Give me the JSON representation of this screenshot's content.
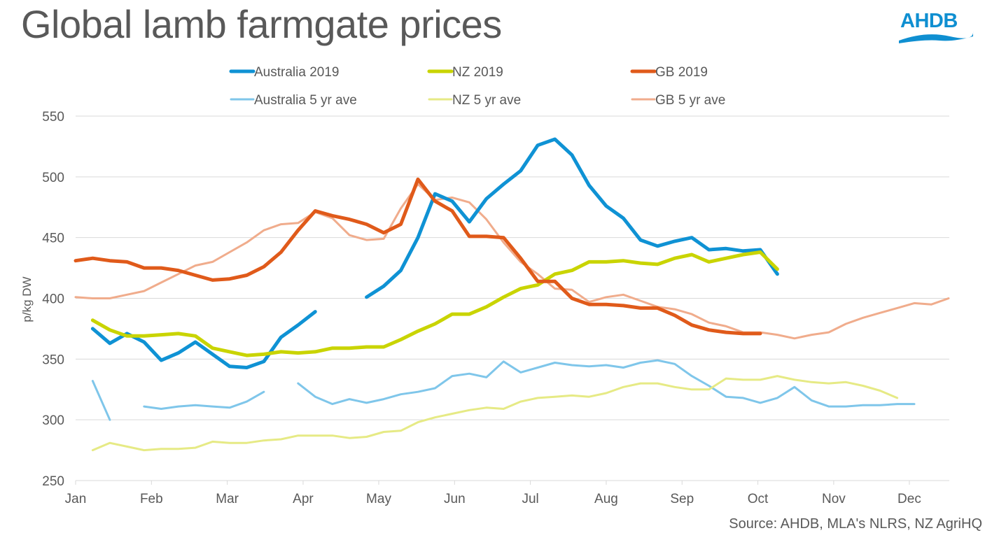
{
  "title": "Global lamb farmgate prices",
  "logo": {
    "text": "AHDB",
    "color": "#0f8fd1"
  },
  "source": "Source: AHDB, MLA's NLRS, NZ AgriHQ",
  "chart_data": {
    "type": "line",
    "title": "Global lamb farmgate prices",
    "xlabel": "",
    "ylabel": "p/kg DW",
    "ylim": [
      250,
      550
    ],
    "yticks": [
      250,
      300,
      350,
      400,
      450,
      500,
      550
    ],
    "x_unit": "week of year (0 = start of Jan)",
    "xlim": [
      0,
      51
    ],
    "xticks": [
      {
        "label": "Jan",
        "week": 0
      },
      {
        "label": "Feb",
        "week": 4.43
      },
      {
        "label": "Mar",
        "week": 8.86
      },
      {
        "label": "Apr",
        "week": 13.29
      },
      {
        "label": "May",
        "week": 17.71
      },
      {
        "label": "Jun",
        "week": 22.14
      },
      {
        "label": "Jul",
        "week": 26.57
      },
      {
        "label": "Aug",
        "week": 31.0
      },
      {
        "label": "Sep",
        "week": 35.43
      },
      {
        "label": "Oct",
        "week": 39.86
      },
      {
        "label": "Nov",
        "week": 44.29
      },
      {
        "label": "Dec",
        "week": 48.71
      }
    ],
    "grid": "horizontal",
    "legend_position": "top",
    "series": [
      {
        "name": "Australia 2019",
        "color": "#0f92d4",
        "width": "thick",
        "segments": [
          [
            [
              1,
              375
            ],
            [
              2,
              363
            ],
            [
              3,
              371
            ],
            [
              4,
              364
            ],
            [
              5,
              349
            ],
            [
              6,
              355
            ],
            [
              7,
              364
            ],
            [
              8,
              354
            ],
            [
              9,
              344
            ],
            [
              10,
              343
            ],
            [
              11,
              348
            ],
            [
              12,
              368
            ],
            [
              13,
              378
            ],
            [
              14,
              389
            ]
          ],
          [
            [
              17,
              401
            ],
            [
              18,
              410
            ],
            [
              19,
              423
            ],
            [
              20,
              450
            ],
            [
              21,
              486
            ],
            [
              22,
              480
            ],
            [
              23,
              463
            ],
            [
              24,
              482
            ],
            [
              25,
              494
            ],
            [
              26,
              505
            ],
            [
              27,
              526
            ],
            [
              28,
              531
            ],
            [
              29,
              518
            ],
            [
              30,
              493
            ],
            [
              31,
              476
            ],
            [
              32,
              466
            ],
            [
              33,
              448
            ],
            [
              34,
              443
            ],
            [
              35,
              447
            ],
            [
              36,
              450
            ],
            [
              37,
              440
            ],
            [
              38,
              441
            ],
            [
              39,
              439
            ],
            [
              40,
              440
            ],
            [
              41,
              420
            ]
          ]
        ]
      },
      {
        "name": "NZ 2019",
        "color": "#c9d400",
        "width": "thick",
        "segments": [
          [
            [
              1,
              382
            ],
            [
              2,
              374
            ],
            [
              3,
              369
            ],
            [
              4,
              369
            ],
            [
              5,
              370
            ],
            [
              6,
              371
            ],
            [
              7,
              369
            ],
            [
              8,
              359
            ],
            [
              9,
              356
            ],
            [
              10,
              353
            ],
            [
              11,
              354
            ],
            [
              12,
              356
            ],
            [
              13,
              355
            ],
            [
              14,
              356
            ],
            [
              15,
              359
            ],
            [
              16,
              359
            ],
            [
              17,
              360
            ],
            [
              18,
              360
            ],
            [
              19,
              366
            ],
            [
              20,
              373
            ],
            [
              21,
              379
            ],
            [
              22,
              387
            ],
            [
              23,
              387
            ],
            [
              24,
              393
            ],
            [
              25,
              401
            ],
            [
              26,
              408
            ],
            [
              27,
              411
            ],
            [
              28,
              420
            ],
            [
              29,
              423
            ],
            [
              30,
              430
            ],
            [
              31,
              430
            ],
            [
              32,
              431
            ],
            [
              33,
              429
            ],
            [
              34,
              428
            ],
            [
              35,
              433
            ],
            [
              36,
              436
            ],
            [
              37,
              430
            ],
            [
              38,
              433
            ],
            [
              39,
              436
            ],
            [
              40,
              438
            ],
            [
              41,
              424
            ]
          ]
        ]
      },
      {
        "name": "GB 2019",
        "color": "#e05a1a",
        "width": "thick",
        "segments": [
          [
            [
              0,
              431
            ],
            [
              1,
              433
            ],
            [
              2,
              431
            ],
            [
              3,
              430
            ],
            [
              4,
              425
            ],
            [
              5,
              425
            ],
            [
              6,
              423
            ],
            [
              7,
              419
            ],
            [
              8,
              415
            ],
            [
              9,
              416
            ],
            [
              10,
              419
            ],
            [
              11,
              426
            ],
            [
              12,
              438
            ],
            [
              13,
              456
            ],
            [
              14,
              472
            ],
            [
              15,
              468
            ],
            [
              16,
              465
            ],
            [
              17,
              461
            ],
            [
              18,
              454
            ],
            [
              19,
              461
            ],
            [
              20,
              498
            ],
            [
              21,
              480
            ],
            [
              22,
              472
            ],
            [
              23,
              451
            ],
            [
              24,
              451
            ],
            [
              25,
              450
            ],
            [
              26,
              433
            ],
            [
              27,
              414
            ],
            [
              28,
              414
            ],
            [
              29,
              400
            ],
            [
              30,
              395
            ],
            [
              31,
              395
            ],
            [
              32,
              394
            ],
            [
              33,
              392
            ],
            [
              34,
              392
            ],
            [
              35,
              386
            ],
            [
              36,
              378
            ],
            [
              37,
              374
            ],
            [
              38,
              372
            ],
            [
              39,
              371
            ],
            [
              40,
              371
            ]
          ]
        ]
      },
      {
        "name": "Australia 5 yr ave",
        "color": "#7fc6ea",
        "width": "thin",
        "segments": [
          [
            [
              1,
              332
            ],
            [
              2,
              300
            ]
          ],
          [
            [
              4,
              311
            ],
            [
              5,
              309
            ],
            [
              6,
              311
            ],
            [
              7,
              312
            ],
            [
              8,
              311
            ],
            [
              9,
              310
            ],
            [
              10,
              315
            ],
            [
              11,
              323
            ]
          ],
          [
            [
              13,
              330
            ],
            [
              14,
              319
            ],
            [
              15,
              313
            ],
            [
              16,
              317
            ],
            [
              17,
              314
            ],
            [
              18,
              317
            ],
            [
              19,
              321
            ],
            [
              20,
              323
            ],
            [
              21,
              326
            ],
            [
              22,
              336
            ],
            [
              23,
              338
            ],
            [
              24,
              335
            ],
            [
              25,
              348
            ],
            [
              26,
              339
            ],
            [
              27,
              343
            ],
            [
              28,
              347
            ],
            [
              29,
              345
            ],
            [
              30,
              344
            ],
            [
              31,
              345
            ],
            [
              32,
              343
            ],
            [
              33,
              347
            ],
            [
              34,
              349
            ],
            [
              35,
              346
            ],
            [
              36,
              336
            ],
            [
              37,
              328
            ],
            [
              38,
              319
            ],
            [
              39,
              318
            ],
            [
              40,
              314
            ],
            [
              41,
              318
            ],
            [
              42,
              327
            ],
            [
              43,
              316
            ],
            [
              44,
              311
            ],
            [
              45,
              311
            ],
            [
              46,
              312
            ],
            [
              47,
              312
            ],
            [
              48,
              313
            ],
            [
              49,
              313
            ]
          ]
        ]
      },
      {
        "name": "NZ 5 yr ave",
        "color": "#e6ea85",
        "width": "thin",
        "segments": [
          [
            [
              1,
              275
            ],
            [
              2,
              281
            ],
            [
              3,
              278
            ],
            [
              4,
              275
            ],
            [
              5,
              276
            ],
            [
              6,
              276
            ],
            [
              7,
              277
            ],
            [
              8,
              282
            ],
            [
              9,
              281
            ],
            [
              10,
              281
            ],
            [
              11,
              283
            ],
            [
              12,
              284
            ],
            [
              13,
              287
            ],
            [
              14,
              287
            ],
            [
              15,
              287
            ],
            [
              16,
              285
            ],
            [
              17,
              286
            ],
            [
              18,
              290
            ],
            [
              19,
              291
            ],
            [
              20,
              298
            ],
            [
              21,
              302
            ],
            [
              22,
              305
            ],
            [
              23,
              308
            ],
            [
              24,
              310
            ],
            [
              25,
              309
            ],
            [
              26,
              315
            ],
            [
              27,
              318
            ],
            [
              28,
              319
            ],
            [
              29,
              320
            ],
            [
              30,
              319
            ],
            [
              31,
              322
            ],
            [
              32,
              327
            ],
            [
              33,
              330
            ],
            [
              34,
              330
            ],
            [
              35,
              327
            ],
            [
              36,
              325
            ],
            [
              37,
              325
            ],
            [
              38,
              334
            ],
            [
              39,
              333
            ],
            [
              40,
              333
            ],
            [
              41,
              336
            ],
            [
              42,
              333
            ],
            [
              43,
              331
            ],
            [
              44,
              330
            ],
            [
              45,
              331
            ],
            [
              46,
              328
            ],
            [
              47,
              324
            ],
            [
              48,
              318
            ]
          ]
        ]
      },
      {
        "name": "GB 5 yr ave",
        "color": "#f0ac8c",
        "width": "thin",
        "segments": [
          [
            [
              0,
              401
            ],
            [
              1,
              400
            ],
            [
              2,
              400
            ],
            [
              3,
              403
            ],
            [
              4,
              406
            ],
            [
              5,
              413
            ],
            [
              6,
              420
            ],
            [
              7,
              427
            ],
            [
              8,
              430
            ],
            [
              9,
              438
            ],
            [
              10,
              446
            ],
            [
              11,
              456
            ],
            [
              12,
              461
            ],
            [
              13,
              462
            ],
            [
              14,
              471
            ],
            [
              15,
              466
            ],
            [
              16,
              452
            ],
            [
              17,
              448
            ],
            [
              18,
              449
            ],
            [
              19,
              474
            ],
            [
              20,
              494
            ],
            [
              21,
              481
            ],
            [
              22,
              483
            ],
            [
              23,
              479
            ],
            [
              24,
              465
            ],
            [
              25,
              446
            ],
            [
              26,
              430
            ],
            [
              27,
              420
            ],
            [
              28,
              408
            ],
            [
              29,
              407
            ],
            [
              30,
              397
            ],
            [
              31,
              401
            ],
            [
              32,
              403
            ],
            [
              33,
              398
            ],
            [
              34,
              393
            ],
            [
              35,
              391
            ],
            [
              36,
              387
            ],
            [
              37,
              380
            ],
            [
              38,
              377
            ],
            [
              39,
              372
            ],
            [
              40,
              372
            ],
            [
              41,
              370
            ],
            [
              42,
              367
            ],
            [
              43,
              370
            ],
            [
              44,
              372
            ],
            [
              45,
              379
            ],
            [
              46,
              384
            ],
            [
              47,
              388
            ],
            [
              48,
              392
            ],
            [
              49,
              396
            ],
            [
              50,
              395
            ],
            [
              51,
              400
            ]
          ]
        ]
      }
    ]
  }
}
